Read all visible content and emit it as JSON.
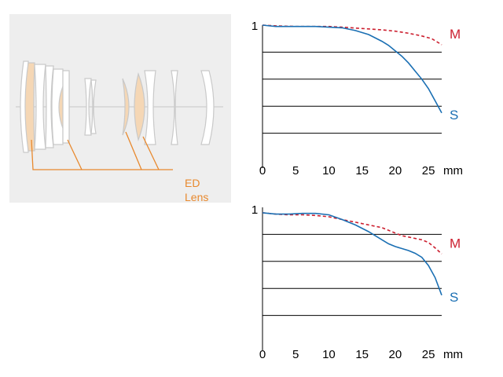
{
  "lens_diagram": {
    "ed_label_line1": "ED",
    "ed_label_line2": "Lens",
    "colors": {
      "ed_lens": "#f5d7b5",
      "ed_line": "#e8892e",
      "lens_outline": "#c9c9c9",
      "background": "#eeeeee"
    }
  },
  "chart_data": [
    {
      "type": "line",
      "title": "",
      "xlabel": "",
      "ylabel": "",
      "xlim": [
        0,
        27
      ],
      "ylim": [
        0,
        1
      ],
      "x_ticks": [
        "0",
        "5",
        "10",
        "15",
        "20",
        "25"
      ],
      "x_unit": "mm",
      "y_tick_label": "1",
      "grid": "horizontal",
      "series": [
        {
          "name": "M",
          "color": "#cc1f2f",
          "style": "dashed",
          "x": [
            0,
            2,
            5,
            8,
            10,
            12,
            15,
            18,
            20,
            22,
            24,
            25.5,
            27
          ],
          "y": [
            1.0,
            0.995,
            0.99,
            0.99,
            0.99,
            0.985,
            0.975,
            0.965,
            0.955,
            0.94,
            0.92,
            0.9,
            0.855
          ]
        },
        {
          "name": "S",
          "color": "#1a6fb3",
          "style": "solid",
          "x": [
            0,
            2,
            5,
            8,
            10,
            12,
            14,
            16,
            18,
            19,
            20,
            21,
            22,
            23,
            24,
            25,
            26,
            27
          ],
          "y": [
            1.0,
            0.99,
            0.99,
            0.99,
            0.985,
            0.98,
            0.96,
            0.93,
            0.88,
            0.85,
            0.81,
            0.77,
            0.72,
            0.66,
            0.6,
            0.53,
            0.44,
            0.35
          ]
        }
      ]
    },
    {
      "type": "line",
      "title": "",
      "xlabel": "",
      "ylabel": "",
      "xlim": [
        0,
        27
      ],
      "ylim": [
        0,
        1
      ],
      "x_ticks": [
        "0",
        "5",
        "10",
        "15",
        "20",
        "25"
      ],
      "x_unit": "mm",
      "y_tick_label": "1",
      "grid": "horizontal",
      "series": [
        {
          "name": "M",
          "color": "#cc1f2f",
          "style": "dashed",
          "x": [
            0,
            2,
            4,
            6,
            8,
            10,
            12,
            14,
            16,
            18,
            20,
            21,
            22,
            24,
            25,
            26,
            27
          ],
          "y": [
            0.96,
            0.95,
            0.945,
            0.945,
            0.94,
            0.93,
            0.91,
            0.89,
            0.87,
            0.85,
            0.81,
            0.79,
            0.78,
            0.76,
            0.74,
            0.7,
            0.655
          ]
        },
        {
          "name": "S",
          "color": "#1a6fb3",
          "style": "solid",
          "x": [
            0,
            2,
            4,
            6,
            8,
            10,
            12,
            14,
            16,
            18,
            19,
            20,
            22,
            23,
            24,
            25,
            26,
            27
          ],
          "y": [
            0.96,
            0.95,
            0.95,
            0.955,
            0.955,
            0.945,
            0.91,
            0.87,
            0.82,
            0.76,
            0.73,
            0.71,
            0.68,
            0.66,
            0.63,
            0.57,
            0.48,
            0.35
          ]
        }
      ]
    }
  ]
}
